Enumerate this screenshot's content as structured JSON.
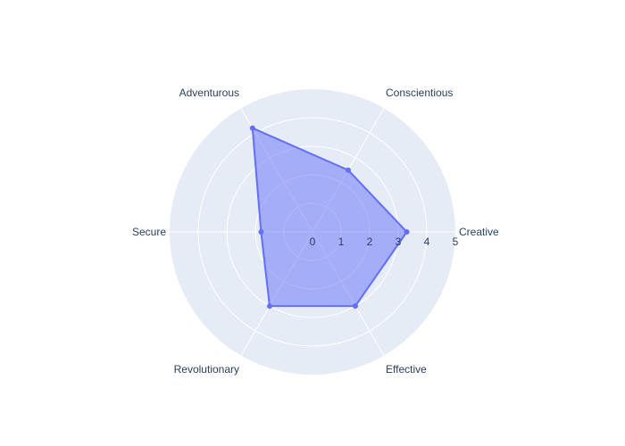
{
  "chart_data": {
    "type": "radar",
    "categories": [
      "Creative",
      "Conscientious",
      "Adventurous",
      "Secure",
      "Revolutionary",
      "Effective"
    ],
    "values": [
      3.3,
      2.5,
      4.2,
      1.8,
      3.0,
      3.0
    ],
    "radial_range": [
      0,
      5
    ],
    "radial_ticks": [
      "0",
      "1",
      "2",
      "3",
      "4",
      "5"
    ],
    "angular_direction": "counterclockwise",
    "start_angle_deg": 0,
    "fill": "toself",
    "grid": true,
    "colors": {
      "polar_bg": "#e5ecf6",
      "grid": "#ffffff",
      "line": "#636efa",
      "fill": "rgba(99,110,250,0.5)",
      "text": "#2a3f5f"
    }
  }
}
